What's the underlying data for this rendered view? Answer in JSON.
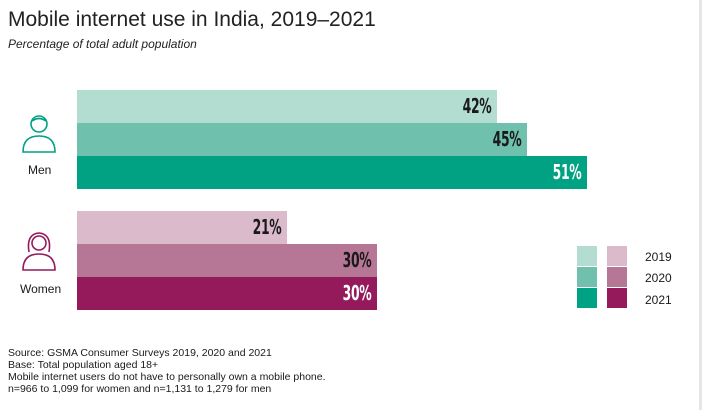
{
  "chart_data": {
    "type": "bar",
    "orientation": "horizontal",
    "title": "Mobile internet use in India, 2019–2021",
    "subtitle": "Percentage of total adult population",
    "categories": [
      "Men",
      "Women"
    ],
    "series": [
      {
        "name": "2019",
        "values": [
          42,
          21
        ],
        "labels": [
          "42%",
          "21%"
        ]
      },
      {
        "name": "2020",
        "values": [
          45,
          30
        ],
        "labels": [
          "45%",
          "30%"
        ]
      },
      {
        "name": "2021",
        "values": [
          51,
          30
        ],
        "labels": [
          "51%",
          "30%"
        ]
      }
    ],
    "xlim": [
      0,
      100
    ],
    "grid": false,
    "legend_position": "right",
    "colors": {
      "men": [
        "#b2ddd0",
        "#6fc0ac",
        "#00a283"
      ],
      "women": [
        "#dbbacb",
        "#b67796",
        "#941a5c"
      ],
      "men_label_text": "#1a1a1a",
      "women_label_text": "#1a1a1a",
      "highlight_label_text": "#ffffff"
    }
  },
  "icons": {
    "men": "man-outline-icon",
    "women": "woman-outline-icon"
  },
  "footnotes": [
    "Source: GSMA Consumer Surveys 2019, 2020 and 2021",
    "Base: Total population aged 18+",
    "Mobile internet users do not have to personally own a mobile phone.",
    "n=966 to 1,099 for women and n=1,131 to 1,279 for men"
  ]
}
